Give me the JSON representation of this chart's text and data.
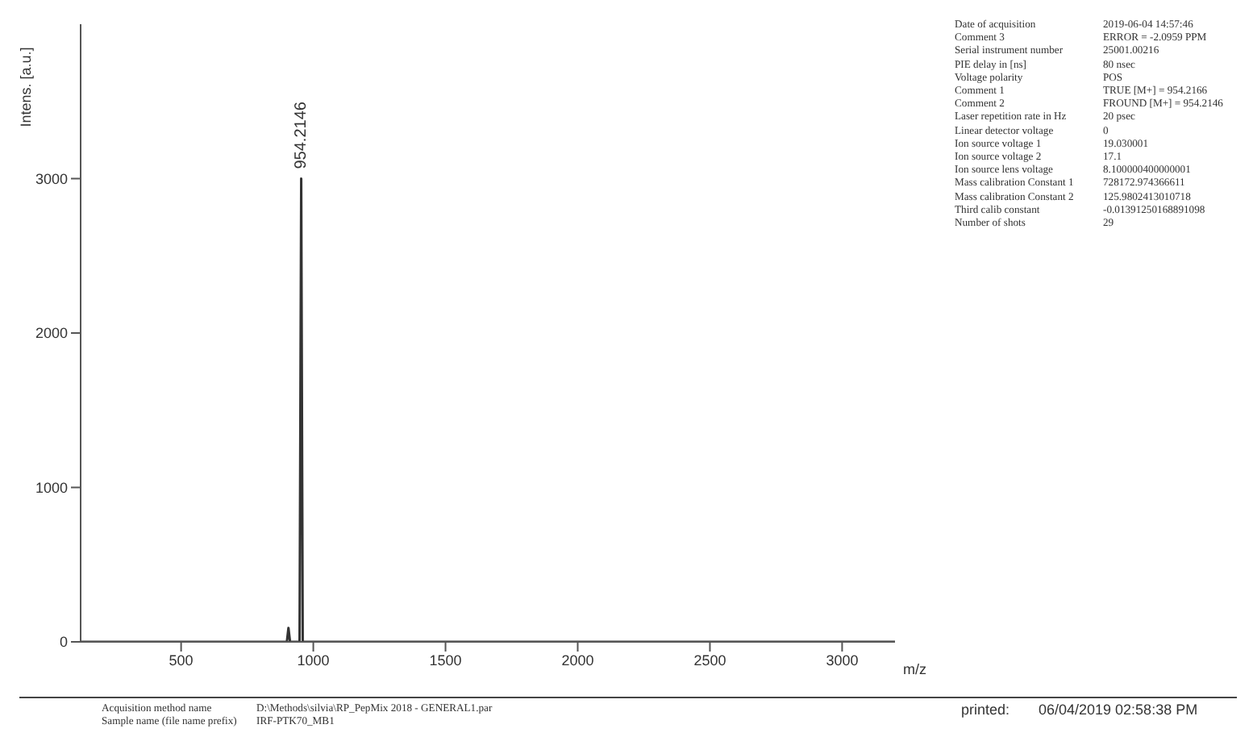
{
  "chart_data": {
    "type": "line",
    "xlabel": "m/z",
    "ylabel": "Intens. [a.u.]",
    "x": [
      120,
      900,
      906,
      912,
      948,
      954.2146,
      960,
      3200
    ],
    "series": [
      {
        "color": "#333333",
        "values": [
          0,
          0,
          90,
          0,
          0,
          3000,
          0,
          0
        ]
      }
    ],
    "xlim": [
      120,
      3200
    ],
    "xticks": [
      500,
      1000,
      1500,
      2000,
      2500,
      3000
    ],
    "ylim": [
      0,
      4000
    ],
    "yticks": [
      0,
      1000,
      2000,
      3000
    ],
    "grid": false,
    "legend": false,
    "marker": "none",
    "line_style": "solid",
    "annotations": [
      {
        "text": "954.2146",
        "x": 954.2146,
        "y": 3000
      },
      "Date of acquisition",
      "2019-06-04 14:57:46",
      "Comment 3",
      "ERROR = -2.0959 PPM",
      "Serial instrument number",
      "25001.00216",
      "PIE delay in [ns]",
      "80 nsec",
      "Voltage polarity",
      "POS",
      "Comment 1",
      "TRUE [M+] =  954.2166",
      "Comment 2",
      "FROUND [M+] = 954.2146",
      "Laser repetition rate in Hz",
      "20 psec",
      "Linear detector voltage",
      "0",
      "Ion source voltage 1",
      "19.030001",
      "Ion source voltage 2",
      "17.1",
      "Ion source lens voltage",
      "8.100000400000001",
      "Mass calibration Constant 1",
      "728172.974366611",
      "Mass calibration Constant 2",
      "125.9802413010718",
      "Third calib constant",
      "-0.01391250168891098",
      "Number of shots",
      "29",
      "Acquisition method name",
      "D:\\Methods\\silvia\\RP_PepMix 2018 - GENERAL1.par",
      "Sample name (file name prefix)",
      "IRF-PTK70_MB1",
      "printed:",
      "06/04/2019 02:58:38 PM"
    ]
  }
}
